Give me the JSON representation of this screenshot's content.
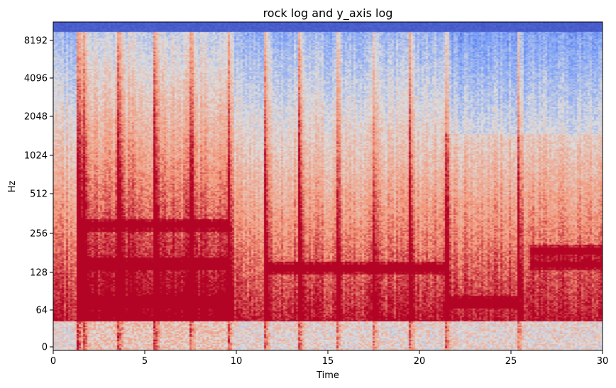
{
  "chart_data": {
    "type": "heatmap",
    "title": "rock log and y_axis log",
    "xlabel": "Time",
    "ylabel": "Hz",
    "xlim": [
      0,
      30
    ],
    "x_ticks": [
      "0",
      "5",
      "10",
      "15",
      "20",
      "25",
      "30"
    ],
    "y_scale": "symlog",
    "y_ticks": [
      "0",
      "64",
      "128",
      "256",
      "512",
      "1024",
      "2048",
      "4096",
      "8192"
    ],
    "ylim_hz": [
      0,
      11025
    ],
    "colormap": "coolwarm",
    "onsets_s": [
      1.3,
      1.6,
      3.5,
      5.5,
      7.4,
      9.5,
      11.5,
      13.4,
      15.4,
      17.4,
      19.4,
      21.4,
      25.3
    ],
    "sustained_notes": [
      {
        "start_s": 1.3,
        "end_s": 9.5,
        "hz": 75
      },
      {
        "start_s": 1.3,
        "end_s": 9.5,
        "hz": 150
      },
      {
        "start_s": 1.3,
        "end_s": 9.5,
        "hz": 300
      },
      {
        "start_s": 11.5,
        "end_s": 21.4,
        "hz": 140
      },
      {
        "start_s": 21.4,
        "end_s": 25.3,
        "hz": 75
      },
      {
        "start_s": 26.0,
        "end_s": 30.0,
        "hz": 150
      },
      {
        "start_s": 26.0,
        "end_s": 30.0,
        "hz": 190
      }
    ]
  }
}
